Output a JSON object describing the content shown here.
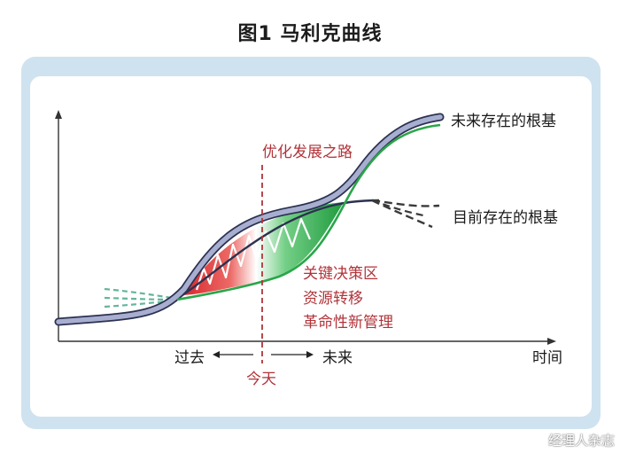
{
  "title": "图1  马利克曲线",
  "curve_labels": {
    "future_foundation": "未来存在的根基",
    "current_foundation": "目前存在的根基"
  },
  "path_label": "优化发展之路",
  "critical_zone": [
    "关键决策区",
    "资源转移",
    "革命性新管理"
  ],
  "axis": {
    "x_label": "时间",
    "past": "过去",
    "future": "未来",
    "today": "今天"
  },
  "watermark": "经理人杂志",
  "colors": {
    "upper_curve": "#8a93b8",
    "outline": "#2c3150",
    "green_curve": "#2aa64a",
    "red_zone": "#e04a48",
    "green_zone": "#35b356",
    "accent_text": "#b1343a",
    "frame": "#cfe2ef"
  }
}
